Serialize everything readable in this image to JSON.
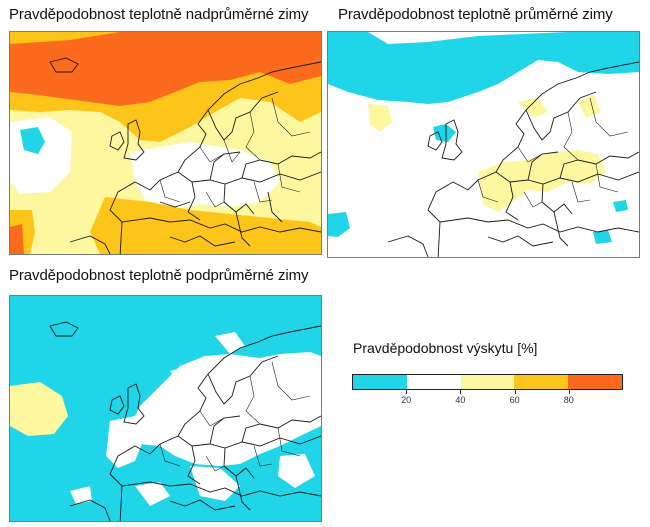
{
  "maps": {
    "above": {
      "title": "Pravděpodobnost teplotně nadprůměrné zimy"
    },
    "normal": {
      "title": "Pravděpodobnost teplotně průměrné zimy"
    },
    "below": {
      "title": "Pravděpodobnost teplotně podprůměrné zimy"
    }
  },
  "legend": {
    "title": "Pravděpodobnost výskytu [%]",
    "ticks": [
      "20",
      "40",
      "60",
      "80"
    ],
    "bins": [
      {
        "range": "0-20",
        "color": "#21d5e8"
      },
      {
        "range": "20-40",
        "color": "#ffffff"
      },
      {
        "range": "40-60",
        "color": "#fdf8a0"
      },
      {
        "range": "60-80",
        "color": "#fdc419"
      },
      {
        "range": "80-100",
        "color": "#fc6a1e"
      }
    ]
  },
  "colors": {
    "cyan": "#21d5e8",
    "yellow": "#fdf8a0",
    "orange": "#fdc419",
    "red": "#fc6a1e",
    "border": "#1a1a1a"
  }
}
